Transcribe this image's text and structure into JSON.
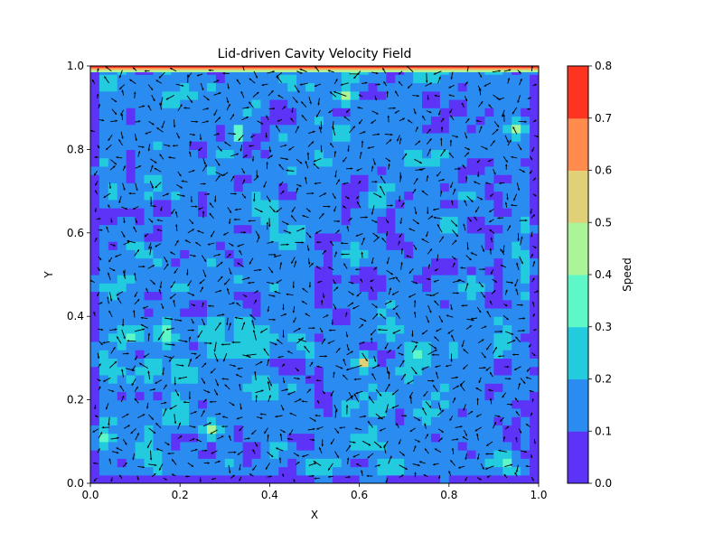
{
  "chart_data": {
    "type": "heatmap",
    "subtype": "filled-contour with quiver arrows",
    "title": "Lid-driven Cavity Velocity Field",
    "xlabel": "X",
    "ylabel": "Y",
    "xlim": [
      0.0,
      1.0
    ],
    "ylim": [
      0.0,
      1.0
    ],
    "x_ticks": [
      "0.0",
      "0.2",
      "0.4",
      "0.6",
      "0.8",
      "1.0"
    ],
    "y_ticks": [
      "0.0",
      "0.2",
      "0.4",
      "0.6",
      "0.8",
      "1.0"
    ],
    "grid": false,
    "colorbar": {
      "label": "Speed",
      "ticks": [
        "0.0",
        "0.1",
        "0.2",
        "0.3",
        "0.4",
        "0.5",
        "0.6",
        "0.7",
        "0.8"
      ],
      "levels": [
        0.0,
        0.1,
        0.2,
        0.3,
        0.4,
        0.5,
        0.6,
        0.7,
        0.8
      ],
      "colors": [
        "#5c33f7",
        "#2a8cf0",
        "#23cbdf",
        "#5df7c8",
        "#a9f598",
        "#e0d078",
        "#ff8b4d",
        "#ff3420"
      ]
    },
    "lid": {
      "y": 1.0,
      "speed_range": [
        0.4,
        0.8
      ]
    },
    "field_grid": {
      "nx": 50,
      "ny": 50
    },
    "typical_speed_range": [
      0.0,
      0.4
    ],
    "hotspots": [
      {
        "x": 0.61,
        "y": 0.29,
        "speed": 0.5
      },
      {
        "x": 0.33,
        "y": 0.84,
        "speed": 0.42
      },
      {
        "x": 0.95,
        "y": 0.85,
        "speed": 0.4
      },
      {
        "x": 0.27,
        "y": 0.13,
        "speed": 0.4
      },
      {
        "x": 0.57,
        "y": 0.93,
        "speed": 0.4
      }
    ]
  }
}
